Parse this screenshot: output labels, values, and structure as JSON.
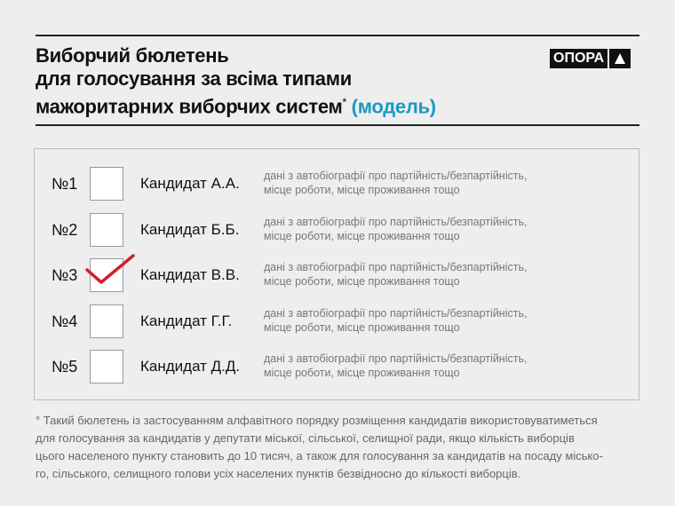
{
  "header": {
    "title_lines": [
      "Виборчий бюлетень",
      "для голосування за всіма типами",
      "мажоритарних виборчих систем"
    ],
    "footnote_mark": "*",
    "model_label": "(модель)",
    "logo_text": "ОПОРА",
    "accent_color": "#1a9ac2"
  },
  "ballot": {
    "candidates": [
      {
        "number": "№1",
        "name": "Кандидат А.А.",
        "desc1": "дані з автобіографії про партійність/безпартійність,",
        "desc2": "місце роботи, місце проживання тощо",
        "checked": false
      },
      {
        "number": "№2",
        "name": "Кандидат Б.Б.",
        "desc1": "дані з автобіографії про партійність/безпартійність,",
        "desc2": "місце роботи, місце проживання тощо",
        "checked": false
      },
      {
        "number": "№3",
        "name": "Кандидат В.В.",
        "desc1": "дані з автобіографії про партійність/безпартійність,",
        "desc2": "місце роботи, місце проживання тощо",
        "checked": true
      },
      {
        "number": "№4",
        "name": "Кандидат Г.Г.",
        "desc1": "дані з автобіографії про партійність/безпартійність,",
        "desc2": "місце роботи, місце проживання тощо",
        "checked": false
      },
      {
        "number": "№5",
        "name": "Кандидат Д.Д.",
        "desc1": "дані з автобіографії про партійність/безпартійність,",
        "desc2": "місце роботи, місце проживання тощо",
        "checked": false
      }
    ],
    "check_color": "#d0202a"
  },
  "footnote": {
    "lines": [
      "° Такий бюлетень із застосуванням алфавітного порядку розміщення кандидатів використовуватиметься",
      "для голосування за кандидатів у депутати міської, сільської, селищної ради, якщо кількість виборців",
      "цього населеного пункту становить до 10 тисяч, а також для голосування за кандидатів на посаду місько-",
      "го, сільського, селищного голови усіх населених пунктів безвідносно до кількості виборців."
    ]
  }
}
